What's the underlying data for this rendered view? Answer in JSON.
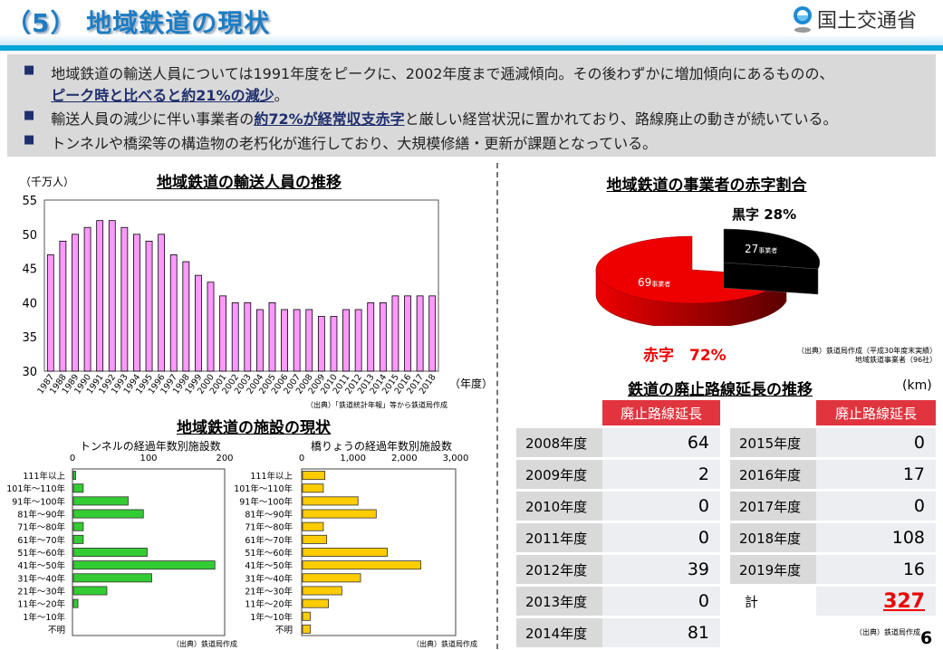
{
  "header": {
    "title": "（5） 地域鉄道の現状",
    "logo_text": "国土交通省"
  },
  "summary": {
    "b1_text": "地域鉄道の輸送人員については1991年度をピークに、2002年度まで逓減傾向。その後わずかに増加傾向にあるものの、",
    "b1_emph": "ピーク時と比べると約21%の減少",
    "b1_end": "。",
    "b2_pre": "輸送人員の減少に伴い事業者の",
    "b2_emph": "約72%が経常収支赤字",
    "b2_post": "と厳しい経営状況に置かれており、路線廃止の動きが続いている。",
    "b3_text": "トンネルや橋梁等の構造物の老朽化が進行しており、大規模修繕・更新が課題となっている。",
    "bullet": "■"
  },
  "chart_data": [
    {
      "type": "bar",
      "title": "地域鉄道の輸送人員の推移",
      "ylabel": "（千万人）",
      "xlabel": "（年度）",
      "ylim": [
        30,
        55
      ],
      "yticks": [
        30,
        35,
        40,
        45,
        50,
        55
      ],
      "categories": [
        "1987",
        "1988",
        "1989",
        "1990",
        "1991",
        "1992",
        "1993",
        "1994",
        "1995",
        "1996",
        "1997",
        "1998",
        "1999",
        "2000",
        "2001",
        "2002",
        "2003",
        "2004",
        "2005",
        "2006",
        "2007",
        "2008",
        "2009",
        "2010",
        "2011",
        "2012",
        "2013",
        "2014",
        "2015",
        "2016",
        "2017",
        "2018"
      ],
      "values": [
        47,
        49,
        50,
        51,
        52,
        52,
        51,
        50,
        49,
        50,
        47,
        46,
        44,
        43,
        41,
        40,
        40,
        39,
        40,
        39,
        39,
        39,
        38,
        38,
        39,
        39,
        40,
        40,
        41,
        41,
        41,
        41
      ],
      "color": "#ff99ff",
      "source": "（出典）「鉄道統計年報」等から鉄道局作成"
    },
    {
      "type": "pie",
      "title": "地域鉄道の事業者の赤字割合",
      "slices": [
        {
          "name": "赤字",
          "percent": 72,
          "count": 69,
          "label": "赤字　72%",
          "inner": "69",
          "unit": "事業者",
          "color": "#ee0000"
        },
        {
          "name": "黒字",
          "percent": 28,
          "count": 27,
          "label": "黒字 28%",
          "inner": "27",
          "unit": "事業者",
          "color": "#000000"
        }
      ],
      "source1": "（出典）鉄道局作成（平成30年度末実績）",
      "source2": "地域鉄道事業者（96社）"
    },
    {
      "type": "bar",
      "orientation": "horizontal",
      "title": "トンネルの経過年数別施設数",
      "xlim": [
        0,
        200
      ],
      "xticks": [
        "0",
        "100",
        "200"
      ],
      "tickvals": [
        0,
        100,
        200
      ],
      "categories": [
        "111年以上",
        "101年～110年",
        "91年～100年",
        "81年～90年",
        "71年～80年",
        "61年～70年",
        "51年～60年",
        "41年～50年",
        "31年～40年",
        "21年～30年",
        "11年～20年",
        "1年～10年",
        "不明"
      ],
      "values": [
        3,
        13,
        72,
        92,
        13,
        13,
        97,
        186,
        103,
        44,
        6,
        0,
        0
      ],
      "color": "#33cc33",
      "source": "（出典）鉄道局作成"
    },
    {
      "type": "bar",
      "orientation": "horizontal",
      "title": "橋りょうの経過年数別施設数",
      "xlim": [
        0,
        3000
      ],
      "xticks": [
        "0",
        "1,000",
        "2,000",
        "3,000"
      ],
      "tickvals": [
        0,
        1000,
        2000,
        3000
      ],
      "categories": [
        "111年以上",
        "101年～110年",
        "91年～100年",
        "81年～90年",
        "71年～80年",
        "61年～70年",
        "51年～60年",
        "41年～50年",
        "31年～40年",
        "21年～30年",
        "11年～20年",
        "1年～10年",
        "不明"
      ],
      "values": [
        435,
        405,
        1080,
        1435,
        405,
        470,
        1650,
        2305,
        1130,
        765,
        505,
        150,
        150
      ],
      "color": "#ffcc00",
      "source": "（出典）鉄道局作成"
    },
    {
      "type": "table",
      "title": "鉄道の廃止路線延長の推移",
      "unit": "(km)",
      "header": "廃止路線延長",
      "left": [
        [
          "2008年度",
          "64"
        ],
        [
          "2009年度",
          "2"
        ],
        [
          "2010年度",
          "0"
        ],
        [
          "2011年度",
          "0"
        ],
        [
          "2012年度",
          "39"
        ],
        [
          "2013年度",
          "0"
        ],
        [
          "2014年度",
          "81"
        ]
      ],
      "right": [
        [
          "2015年度",
          "0"
        ],
        [
          "2016年度",
          "17"
        ],
        [
          "2017年度",
          "0"
        ],
        [
          "2018年度",
          "108"
        ],
        [
          "2019年度",
          "16"
        ],
        [
          "計",
          "327"
        ]
      ],
      "source": "（出典）鉄道局作成"
    }
  ],
  "facilities_title": "地域鉄道の施設の現状",
  "page_number": "6"
}
